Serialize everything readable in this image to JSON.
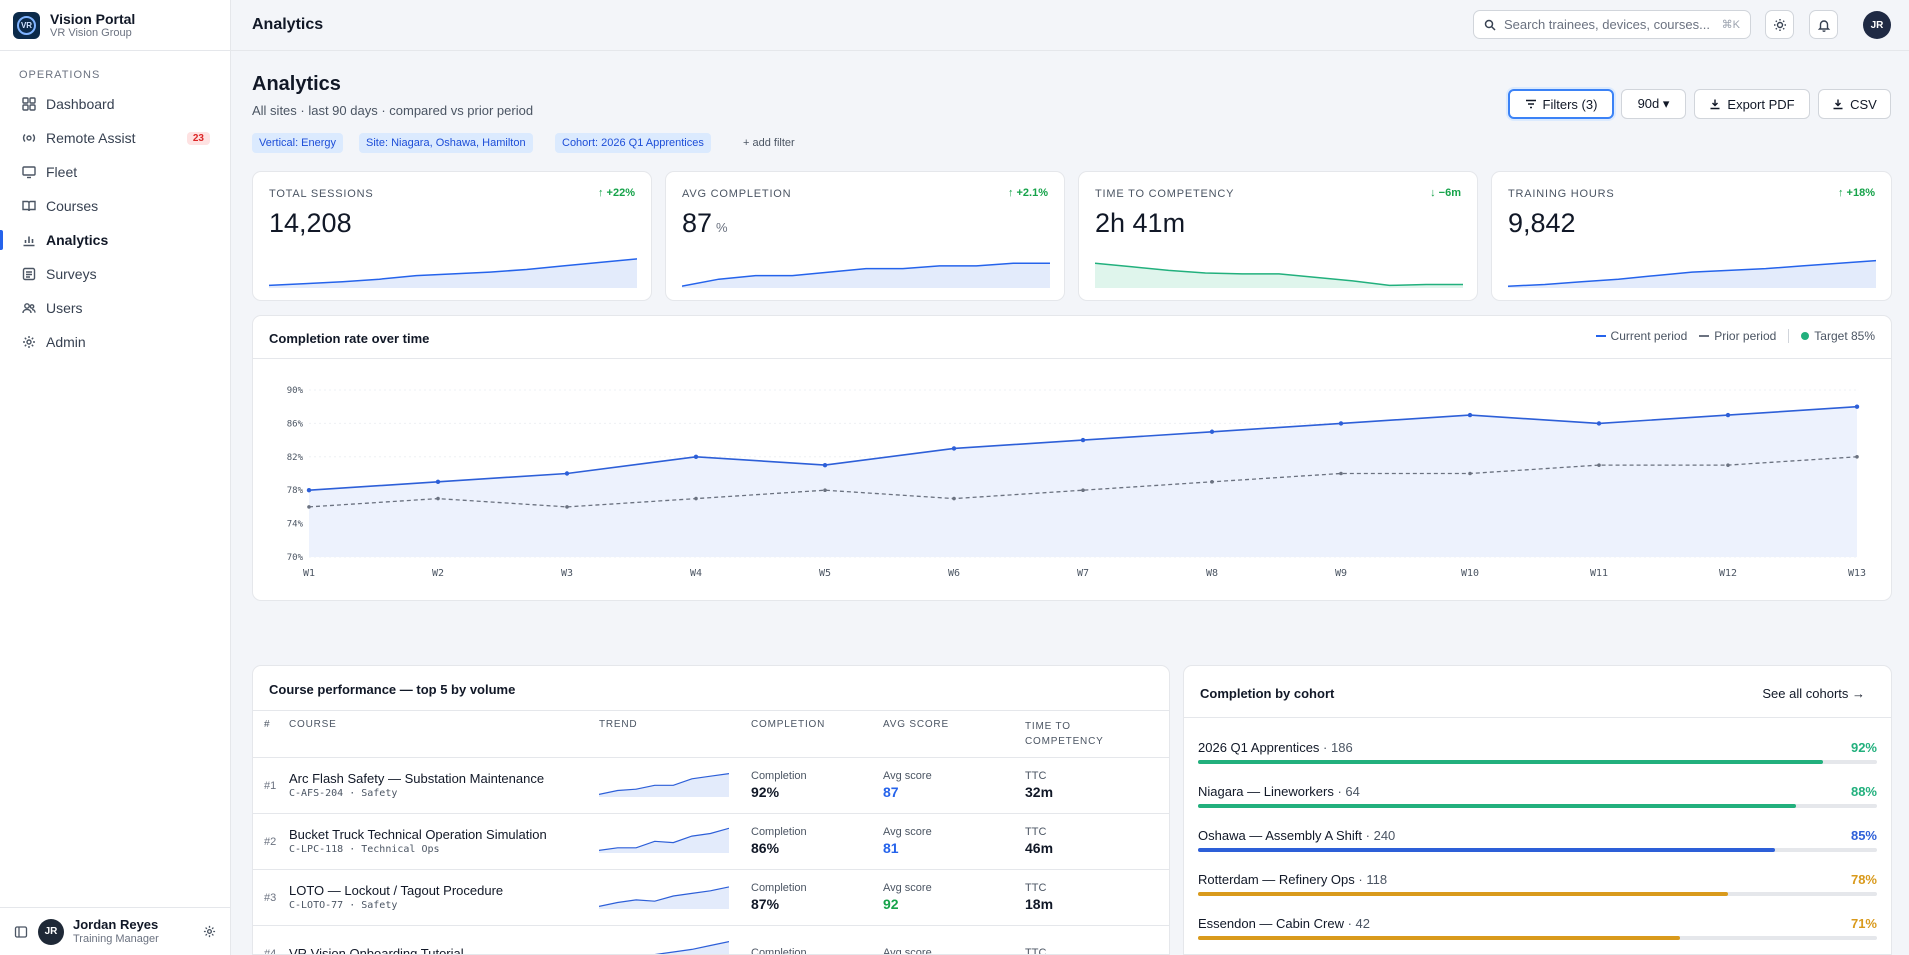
{
  "app": {
    "name": "Vision Portal",
    "org": "VR Vision Group",
    "logo_text": "VR"
  },
  "sidebar": {
    "section": "OPERATIONS",
    "items": [
      {
        "label": "Dashboard",
        "icon": "grid-icon"
      },
      {
        "label": "Remote Assist",
        "icon": "radio-icon",
        "badge": "23"
      },
      {
        "label": "Fleet",
        "icon": "monitor-icon"
      },
      {
        "label": "Courses",
        "icon": "book-icon"
      },
      {
        "label": "Analytics",
        "icon": "bar-chart-icon",
        "active": true
      },
      {
        "label": "Surveys",
        "icon": "survey-icon"
      },
      {
        "label": "Users",
        "icon": "users-icon"
      },
      {
        "label": "Admin",
        "icon": "gear-icon"
      }
    ],
    "user": {
      "initials": "JR",
      "name": "Jordan Reyes",
      "role": "Training Manager"
    }
  },
  "topbar": {
    "title": "Analytics",
    "search_placeholder": "Search trainees, devices, courses...",
    "search_shortcut": "⌘K",
    "avatar": "JR"
  },
  "page": {
    "title": "Analytics",
    "subtitle": "All sites · last 90 days · compared vs prior period",
    "buttons": {
      "filters": "Filters (3)",
      "range": "90d ▾",
      "export_pdf": "Export PDF",
      "csv": "CSV"
    },
    "chips": [
      "Vertical: Energy",
      "Site: Niagara, Oshawa, Hamilton",
      "Cohort: 2026 Q1 Apprentices"
    ],
    "add_filter": "+ add filter"
  },
  "colors": {
    "accent": "#2563eb",
    "positive": "#16a34a",
    "teal": "#22b07d",
    "warn": "#d99a1c",
    "danger": "#dc2626"
  },
  "kpis": [
    {
      "label": "TOTAL SESSIONS",
      "value": "14,208",
      "unit": "",
      "delta": "+22%",
      "delta_dir": "up",
      "color": "#2563eb",
      "spark": [
        3,
        5,
        7,
        10,
        14,
        16,
        18,
        21,
        25,
        29,
        33
      ]
    },
    {
      "label": "AVG COMPLETION",
      "value": "87",
      "unit": "%",
      "delta": "+2.1%",
      "delta_dir": "up",
      "color": "#2563eb",
      "spark": [
        2,
        10,
        14,
        14,
        18,
        22,
        22,
        25,
        25,
        28,
        28
      ]
    },
    {
      "label": "TIME TO COMPETENCY",
      "value": "2h 41m",
      "unit": "",
      "delta": "−6m",
      "delta_dir": "down",
      "color": "#22b07d",
      "spark": [
        28,
        24,
        20,
        17,
        16,
        16,
        12,
        8,
        3,
        4,
        4
      ]
    },
    {
      "label": "TRAINING HOURS",
      "value": "9,842",
      "unit": "",
      "delta": "+18%",
      "delta_dir": "up",
      "color": "#2563eb",
      "spark": [
        2,
        4,
        7,
        10,
        14,
        18,
        20,
        22,
        25,
        28,
        31
      ]
    }
  ],
  "chart_data": {
    "type": "line",
    "title": "Completion rate over time",
    "legend": [
      "Current period",
      "Prior period",
      "Target 85%"
    ],
    "x": [
      "W1",
      "W2",
      "W3",
      "W4",
      "W5",
      "W6",
      "W7",
      "W8",
      "W9",
      "W10",
      "W11",
      "W12",
      "W13"
    ],
    "y_ticks": [
      "90%",
      "86%",
      "82%",
      "78%",
      "74%",
      "70%"
    ],
    "ylim": [
      70,
      90
    ],
    "series": [
      {
        "name": "Current period",
        "values": [
          78,
          79,
          80,
          82,
          81,
          83,
          84,
          85,
          86,
          87,
          86,
          87,
          88
        ]
      },
      {
        "name": "Prior period",
        "values": [
          76,
          77,
          76,
          77,
          78,
          77,
          78,
          79,
          80,
          80,
          81,
          81,
          82
        ]
      }
    ],
    "target": 85
  },
  "courses": {
    "title": "Course performance — top 5 by volume",
    "headers": {
      "rank": "#",
      "course": "COURSE",
      "trend": "TREND",
      "completion": "COMPLETION",
      "score": "AVG SCORE",
      "ttc": "TIME TO COMPETENCY"
    },
    "labels": {
      "completion": "Completion",
      "score": "Avg score",
      "ttc": "TTC"
    },
    "rows": [
      {
        "rank": "#1",
        "name": "Arc Flash Safety — Substation Maintenance",
        "code": "C-AFS-204 · Safety",
        "completion": "92%",
        "score": "87",
        "score_color": "#2563eb",
        "ttc": "32m",
        "trend": [
          2,
          5,
          6,
          9,
          9,
          14,
          16,
          18
        ]
      },
      {
        "rank": "#2",
        "name": "Bucket Truck Technical Operation Simulation",
        "code": "C-LPC-118 · Technical Ops",
        "completion": "86%",
        "score": "81",
        "score_color": "#2563eb",
        "ttc": "46m",
        "trend": [
          2,
          4,
          4,
          9,
          8,
          13,
          15,
          19
        ]
      },
      {
        "rank": "#3",
        "name": "LOTO — Lockout / Tagout Procedure",
        "code": "C-LOTO-77 · Safety",
        "completion": "87%",
        "score": "92",
        "score_color": "#16a34a",
        "ttc": "18m",
        "trend": [
          2,
          5,
          7,
          6,
          10,
          12,
          14,
          17
        ]
      },
      {
        "rank": "#4",
        "name": "VR Vision Onboarding Tutorial",
        "code": "",
        "completion": "",
        "score": "",
        "score_color": "#2563eb",
        "ttc": "",
        "trend": [
          2,
          4,
          6,
          8,
          10,
          12,
          15,
          18
        ]
      }
    ]
  },
  "cohorts": {
    "title": "Completion by cohort",
    "link": "See all cohorts →",
    "rows": [
      {
        "name": "2026 Q1 Apprentices",
        "count": "186",
        "pct": "92%",
        "value": 92,
        "color": "#22b07d"
      },
      {
        "name": "Niagara — Lineworkers",
        "count": "64",
        "pct": "88%",
        "value": 88,
        "color": "#22b07d"
      },
      {
        "name": "Oshawa — Assembly A Shift",
        "count": "240",
        "pct": "85%",
        "value": 85,
        "color": "#2d5fd8"
      },
      {
        "name": "Rotterdam — Refinery Ops",
        "count": "118",
        "pct": "78%",
        "value": 78,
        "color": "#d99a1c"
      },
      {
        "name": "Essendon — Cabin Crew",
        "count": "42",
        "pct": "71%",
        "value": 71,
        "color": "#d99a1c"
      }
    ]
  }
}
